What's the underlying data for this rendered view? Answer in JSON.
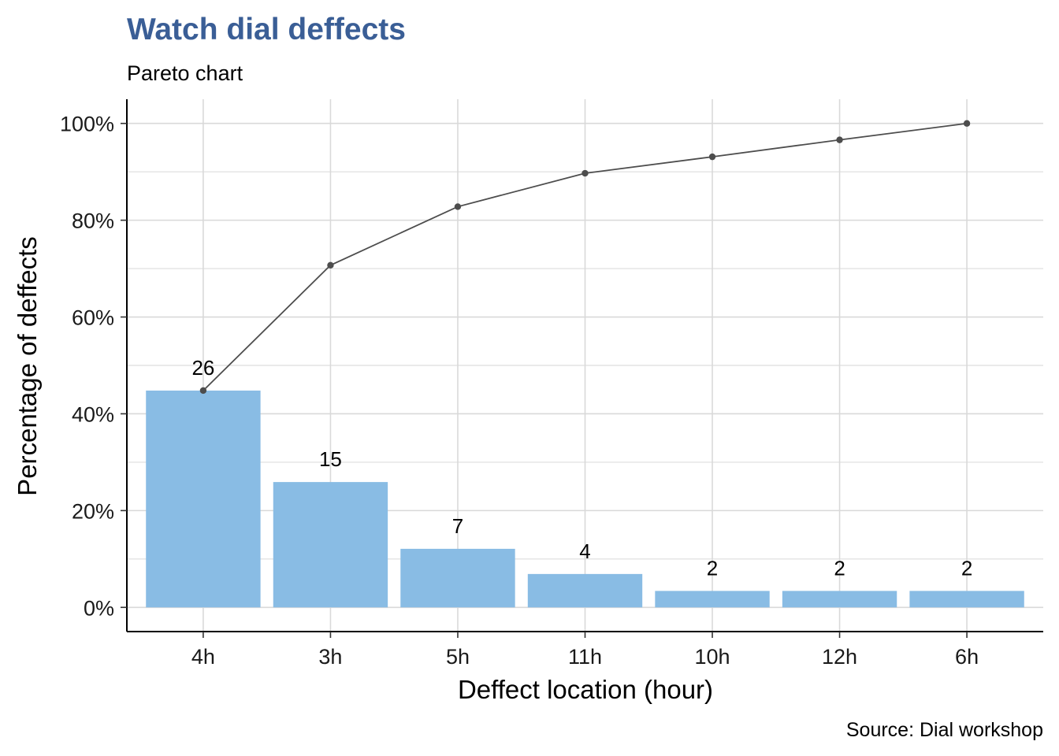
{
  "chart_data": {
    "type": "bar",
    "title": "Watch dial deffects",
    "subtitle": "Pareto chart",
    "xlabel": "Deffect location (hour)",
    "ylabel": "Percentage of deffects",
    "caption": "Source: Dial workshop",
    "categories": [
      "4h",
      "3h",
      "5h",
      "11h",
      "10h",
      "12h",
      "6h"
    ],
    "counts": [
      26,
      15,
      7,
      4,
      2,
      2,
      2
    ],
    "series": [
      {
        "type": "bar",
        "values": [
          44.8,
          25.9,
          12.1,
          6.9,
          3.4,
          3.4,
          3.4
        ],
        "color": "#89bce4"
      },
      {
        "type": "line",
        "values": [
          44.8,
          70.7,
          82.8,
          89.7,
          93.1,
          96.6,
          100.0
        ],
        "color": "#4d4d4d"
      }
    ],
    "ylim": [
      -5,
      105
    ],
    "yticks": [
      "0%",
      "20%",
      "40%",
      "60%",
      "80%",
      "100%"
    ],
    "grid": true
  }
}
